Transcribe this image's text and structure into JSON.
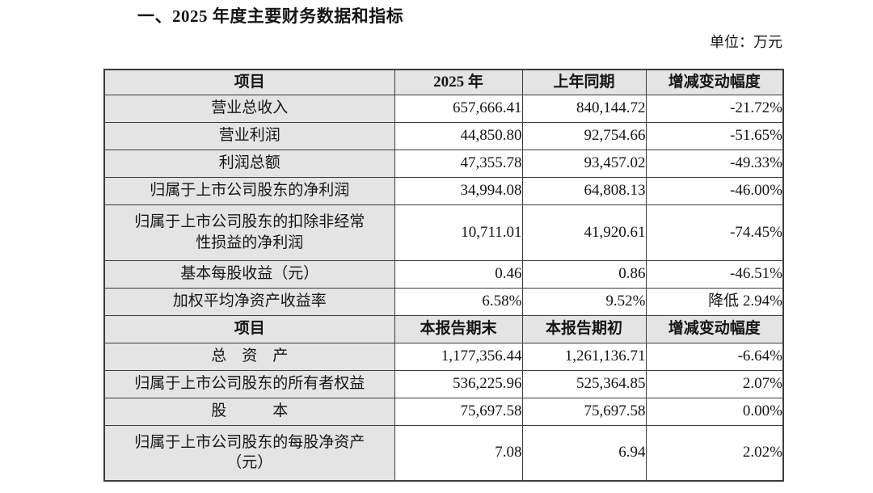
{
  "page": {
    "title": "一、2025 年度主要财务数据和指标",
    "unit_label": "单位：万元"
  },
  "colors": {
    "header_and_item_bg": "#e4e4e4",
    "cell_bg": "#ffffff",
    "border": "#3c3c3c",
    "text": "#151515"
  },
  "table": {
    "sections": [
      {
        "header": [
          "项目",
          "2025 年",
          "上年同期",
          "增减变动幅度"
        ],
        "rows": [
          {
            "item": "营业总收入",
            "current": "657,666.41",
            "prior": "840,144.72",
            "change": "-21.72%"
          },
          {
            "item": "营业利润",
            "current": "44,850.80",
            "prior": "92,754.66",
            "change": "-51.65%"
          },
          {
            "item": "利润总额",
            "current": "47,355.78",
            "prior": "93,457.02",
            "change": "-49.33%"
          },
          {
            "item": "归属于上市公司股东的净利润",
            "current": "34,994.08",
            "prior": "64,808.13",
            "change": "-46.00%"
          },
          {
            "item": "归属于上市公司股东的扣除非经常\n性损益的净利润",
            "current": "10,711.01",
            "prior": "41,920.61",
            "change": "-74.45%"
          },
          {
            "item": "基本每股收益（元）",
            "current": "0.46",
            "prior": "0.86",
            "change": "-46.51%"
          },
          {
            "item": "加权平均净资产收益率",
            "current": "6.58%",
            "prior": "9.52%",
            "change": "降低 2.94%"
          }
        ]
      },
      {
        "header": [
          "项目",
          "本报告期末",
          "本报告期初",
          "增减变动幅度"
        ],
        "rows": [
          {
            "item": "总　资　产",
            "current": "1,177,356.44",
            "prior": "1,261,136.71",
            "change": "-6.64%"
          },
          {
            "item": "归属于上市公司股东的所有者权益",
            "current": "536,225.96",
            "prior": "525,364.85",
            "change": "2.07%"
          },
          {
            "item": "股　　　本",
            "current": "75,697.58",
            "prior": "75,697.58",
            "change": "0.00%"
          },
          {
            "item": "归属于上市公司股东的每股净资产\n（元）",
            "current": "7.08",
            "prior": "6.94",
            "change": "2.02%"
          }
        ]
      }
    ]
  }
}
